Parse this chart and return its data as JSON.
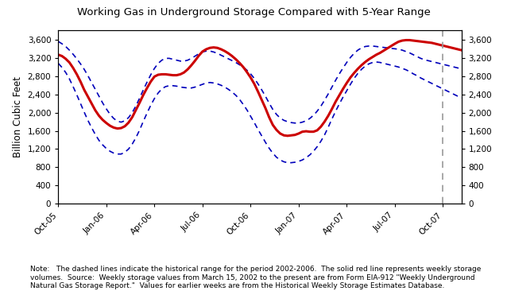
{
  "title": "Working Gas in Underground Storage Compared with 5-Year Range",
  "ylabel_left": "Billion Cubic Feet",
  "ylim": [
    0,
    3800
  ],
  "yticks": [
    0,
    400,
    800,
    1200,
    1600,
    2000,
    2400,
    2800,
    3200,
    3600
  ],
  "note": "Note:   The dashed lines indicate the historical range for the period 2002-2006.  The solid red line represents weekly storage\nvolumes.  Source:  Weekly storage values from March 15, 2002 to the present are from Form EIA-912 \"Weekly Underground\nNatural Gas Storage Report.\"  Values for earlier weeks are from the Historical Weekly Storage Estimates Database.",
  "xtick_labels": [
    "Oct-05",
    "Jan-06",
    "Apr-06",
    "Jul-06",
    "Oct-06",
    "Jan-07",
    "Apr-07",
    "Jul-07",
    "Oct-07"
  ],
  "xtick_positions": [
    0,
    13,
    26,
    39,
    52,
    65,
    78,
    91,
    104
  ],
  "dashed_vline_x": 104,
  "n_points": 110,
  "red_line": [
    3270,
    3240,
    3180,
    3100,
    2980,
    2840,
    2680,
    2500,
    2350,
    2200,
    2050,
    1930,
    1840,
    1770,
    1710,
    1670,
    1650,
    1660,
    1700,
    1780,
    1900,
    2060,
    2220,
    2390,
    2540,
    2680,
    2790,
    2830,
    2840,
    2840,
    2830,
    2820,
    2820,
    2840,
    2880,
    2950,
    3040,
    3140,
    3250,
    3340,
    3390,
    3420,
    3430,
    3420,
    3390,
    3350,
    3300,
    3240,
    3170,
    3090,
    3000,
    2890,
    2770,
    2630,
    2460,
    2280,
    2100,
    1900,
    1730,
    1620,
    1540,
    1500,
    1490,
    1500,
    1510,
    1540,
    1580,
    1590,
    1580,
    1580,
    1610,
    1690,
    1800,
    1930,
    2080,
    2240,
    2380,
    2520,
    2650,
    2770,
    2870,
    2960,
    3040,
    3110,
    3170,
    3220,
    3270,
    3310,
    3360,
    3410,
    3460,
    3510,
    3555,
    3580,
    3590,
    3590,
    3580,
    3570,
    3560,
    3550,
    3540,
    3530,
    3510,
    3490,
    3470,
    3450,
    3430,
    3410,
    3390,
    3370
  ],
  "upper_dashed": [
    3560,
    3510,
    3450,
    3370,
    3280,
    3180,
    3070,
    2950,
    2810,
    2660,
    2510,
    2360,
    2210,
    2080,
    1960,
    1870,
    1810,
    1790,
    1820,
    1890,
    2000,
    2150,
    2320,
    2500,
    2670,
    2830,
    2970,
    3080,
    3150,
    3190,
    3190,
    3170,
    3150,
    3130,
    3130,
    3150,
    3190,
    3240,
    3290,
    3330,
    3350,
    3350,
    3330,
    3300,
    3260,
    3220,
    3180,
    3140,
    3100,
    3050,
    3000,
    2930,
    2850,
    2750,
    2630,
    2500,
    2360,
    2210,
    2070,
    1960,
    1880,
    1830,
    1800,
    1780,
    1770,
    1770,
    1790,
    1820,
    1870,
    1940,
    2030,
    2140,
    2270,
    2410,
    2560,
    2710,
    2850,
    2980,
    3100,
    3210,
    3300,
    3370,
    3420,
    3450,
    3460,
    3460,
    3450,
    3440,
    3430,
    3420,
    3410,
    3400,
    3390,
    3370,
    3340,
    3310,
    3270,
    3230,
    3190,
    3160,
    3140,
    3120,
    3100,
    3080,
    3060,
    3040,
    3020,
    3000,
    2980,
    2960
  ],
  "lower_dashed": [
    3080,
    2990,
    2880,
    2740,
    2570,
    2390,
    2200,
    2010,
    1830,
    1670,
    1520,
    1390,
    1290,
    1210,
    1150,
    1110,
    1090,
    1090,
    1130,
    1200,
    1310,
    1450,
    1620,
    1810,
    1990,
    2160,
    2310,
    2430,
    2520,
    2570,
    2590,
    2590,
    2580,
    2560,
    2550,
    2540,
    2540,
    2560,
    2590,
    2620,
    2650,
    2660,
    2650,
    2630,
    2600,
    2560,
    2510,
    2450,
    2380,
    2290,
    2180,
    2060,
    1920,
    1780,
    1630,
    1490,
    1350,
    1220,
    1110,
    1020,
    960,
    920,
    900,
    900,
    910,
    930,
    960,
    1010,
    1070,
    1150,
    1250,
    1370,
    1510,
    1680,
    1860,
    2030,
    2190,
    2340,
    2480,
    2620,
    2750,
    2860,
    2950,
    3020,
    3070,
    3100,
    3110,
    3100,
    3080,
    3060,
    3040,
    3020,
    3000,
    2970,
    2940,
    2900,
    2850,
    2810,
    2760,
    2720,
    2680,
    2640,
    2600,
    2560,
    2520,
    2480,
    2440,
    2400,
    2360,
    2320
  ],
  "bg_color": "#ffffff",
  "red_color": "#cc0000",
  "blue_dashed_color": "#0000bb",
  "vline_color": "#999999",
  "title_fontsize": 9.5,
  "axis_fontsize": 7.5,
  "ylabel_fontsize": 8.5,
  "note_fontsize": 6.5
}
